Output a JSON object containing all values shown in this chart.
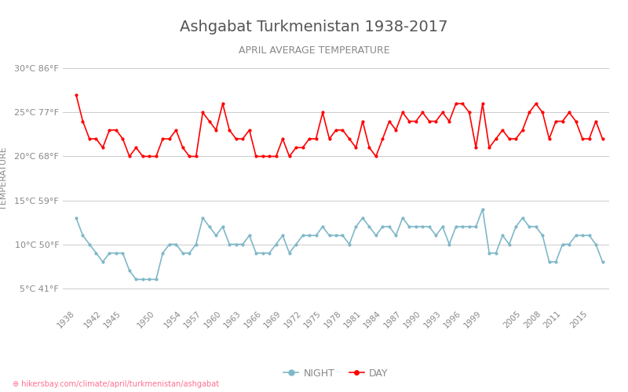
{
  "title": "Ashgabat Turkmenistan 1938-2017",
  "subtitle": "APRIL AVERAGE TEMPERATURE",
  "ylabel": "TEMPERATURE",
  "ylabel_color": "#888888",
  "title_color": "#555555",
  "subtitle_color": "#888888",
  "footer": "hikersbay.com/climate/april/turkmenistan/ashgabat",
  "years": [
    1938,
    1939,
    1940,
    1941,
    1942,
    1943,
    1944,
    1945,
    1946,
    1947,
    1948,
    1949,
    1950,
    1951,
    1952,
    1953,
    1954,
    1955,
    1956,
    1957,
    1958,
    1959,
    1960,
    1961,
    1962,
    1963,
    1964,
    1965,
    1966,
    1967,
    1968,
    1969,
    1970,
    1971,
    1972,
    1973,
    1974,
    1975,
    1976,
    1977,
    1978,
    1979,
    1980,
    1981,
    1982,
    1983,
    1984,
    1985,
    1986,
    1987,
    1988,
    1989,
    1990,
    1991,
    1992,
    1993,
    1994,
    1995,
    1996,
    1997,
    1998,
    1999,
    2000,
    2001,
    2002,
    2003,
    2004,
    2005,
    2006,
    2007,
    2008,
    2009,
    2010,
    2011,
    2012,
    2013,
    2014,
    2015,
    2016,
    2017
  ],
  "day_temps": [
    27,
    24,
    22,
    22,
    21,
    23,
    23,
    22,
    20,
    21,
    20,
    20,
    20,
    22,
    22,
    23,
    21,
    20,
    20,
    25,
    24,
    23,
    26,
    23,
    22,
    22,
    23,
    20,
    20,
    20,
    20,
    22,
    20,
    21,
    21,
    22,
    22,
    25,
    22,
    23,
    23,
    22,
    21,
    24,
    21,
    20,
    22,
    24,
    23,
    25,
    24,
    24,
    25,
    24,
    24,
    25,
    24,
    26,
    26,
    25,
    21,
    26,
    21,
    22,
    23,
    22,
    22,
    23,
    25,
    26,
    25,
    22,
    24,
    24,
    25,
    24,
    22,
    22,
    24,
    22
  ],
  "night_temps": [
    13,
    11,
    10,
    9,
    8,
    9,
    9,
    9,
    7,
    6,
    6,
    6,
    6,
    9,
    10,
    10,
    9,
    9,
    10,
    13,
    12,
    11,
    12,
    10,
    10,
    10,
    11,
    9,
    9,
    9,
    10,
    11,
    9,
    10,
    11,
    11,
    11,
    12,
    11,
    11,
    11,
    10,
    12,
    13,
    12,
    11,
    12,
    12,
    11,
    13,
    12,
    12,
    12,
    12,
    11,
    12,
    10,
    12,
    12,
    12,
    12,
    14,
    9,
    9,
    11,
    10,
    12,
    13,
    12,
    12,
    11,
    8,
    8,
    10,
    10,
    11,
    11,
    11,
    10,
    8
  ],
  "day_color": "#ff0000",
  "night_color": "#7fb8c8",
  "background_color": "#ffffff",
  "grid_color": "#cccccc",
  "yticks_c": [
    5,
    10,
    15,
    20,
    25,
    30
  ],
  "yticks_f": [
    41,
    50,
    59,
    68,
    77,
    86
  ],
  "ylim": [
    3,
    32
  ],
  "xtick_labels": [
    "1938",
    "1942",
    "1945",
    "1950",
    "1954",
    "1957",
    "1960",
    "1963",
    "1966",
    "1969",
    "1972",
    "1975",
    "1978",
    "1981",
    "1984",
    "1987",
    "1990",
    "1993",
    "1996",
    "1999",
    "2005",
    "2008",
    "2011",
    "2015"
  ],
  "xtick_years": [
    1938,
    1942,
    1945,
    1950,
    1954,
    1957,
    1960,
    1963,
    1966,
    1969,
    1972,
    1975,
    1978,
    1981,
    1984,
    1987,
    1990,
    1993,
    1996,
    1999,
    2005,
    2008,
    2011,
    2015
  ]
}
